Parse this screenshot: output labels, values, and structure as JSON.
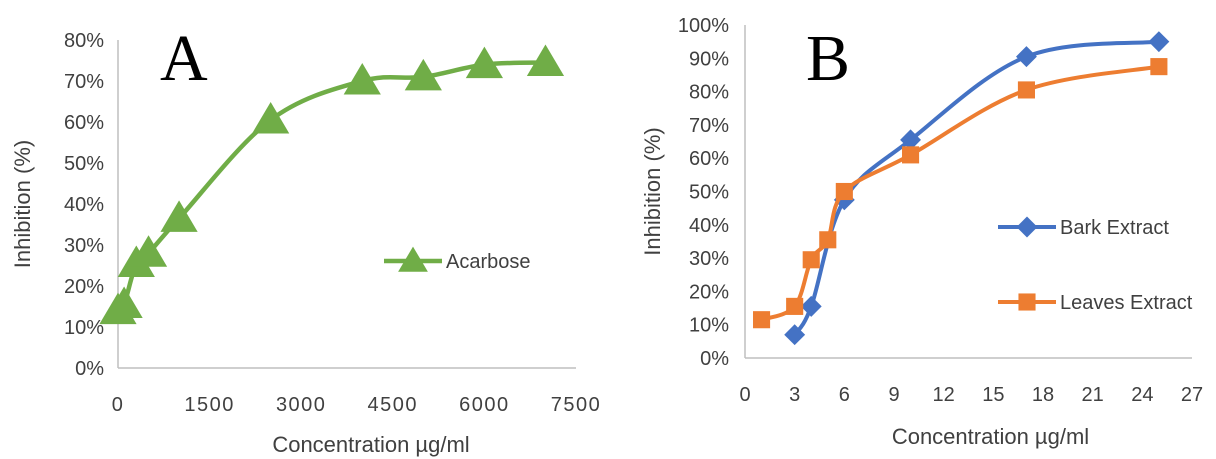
{
  "chart_data": [
    {
      "type": "line",
      "panel_label": "A",
      "xlabel": "Concentration µg/ml",
      "ylabel": "Inhibition (%)",
      "xlim": [
        0,
        7500
      ],
      "ylim": [
        0,
        0.8
      ],
      "x_ticks": [
        "0",
        "1500",
        "3000",
        "4500",
        "6000",
        "7500"
      ],
      "y_ticks": [
        "0%",
        "10%",
        "20%",
        "30%",
        "40%",
        "50%",
        "60%",
        "70%",
        "80%"
      ],
      "grid": false,
      "legend_position": "right",
      "series": [
        {
          "name": "Acarbose",
          "color": "#70ad47",
          "marker": "triangle",
          "points": [
            {
              "x": 0,
              "y": 0.14
            },
            {
              "x": 100,
              "y": 0.155
            },
            {
              "x": 300,
              "y": 0.255
            },
            {
              "x": 500,
              "y": 0.28
            },
            {
              "x": 1000,
              "y": 0.365
            },
            {
              "x": 2500,
              "y": 0.605
            },
            {
              "x": 4000,
              "y": 0.7
            },
            {
              "x": 5000,
              "y": 0.71
            },
            {
              "x": 6000,
              "y": 0.74
            },
            {
              "x": 7000,
              "y": 0.745
            }
          ]
        }
      ]
    },
    {
      "type": "line",
      "panel_label": "B",
      "xlabel": "Concentration µg/ml",
      "ylabel": "Inhibition (%)",
      "x_ticks": [
        "0",
        "3",
        "6",
        "9",
        "12",
        "15",
        "18",
        "21",
        "24",
        "27"
      ],
      "y_ticks": [
        "0%",
        "10%",
        "20%",
        "30%",
        "40%",
        "50%",
        "60%",
        "70%",
        "80%",
        "90%",
        "100%"
      ],
      "ylim": [
        0,
        1.0
      ],
      "grid": false,
      "legend_position": "right",
      "series": [
        {
          "name": "Bark Extract",
          "color": "#4472c4",
          "marker": "diamond",
          "points": [
            {
              "x": 3,
              "y": 0.07
            },
            {
              "x": 4,
              "y": 0.155
            },
            {
              "x": 6,
              "y": 0.475
            },
            {
              "x": 10,
              "y": 0.655
            },
            {
              "x": 17,
              "y": 0.905
            },
            {
              "x": 25,
              "y": 0.95
            }
          ]
        },
        {
          "name": "Leaves Extract",
          "color": "#ed7d31",
          "marker": "square",
          "points": [
            {
              "x": 1,
              "y": 0.115
            },
            {
              "x": 3,
              "y": 0.155
            },
            {
              "x": 4,
              "y": 0.295
            },
            {
              "x": 5,
              "y": 0.355
            },
            {
              "x": 6,
              "y": 0.5
            },
            {
              "x": 10,
              "y": 0.61
            },
            {
              "x": 17,
              "y": 0.805
            },
            {
              "x": 25,
              "y": 0.875
            }
          ]
        }
      ]
    }
  ]
}
